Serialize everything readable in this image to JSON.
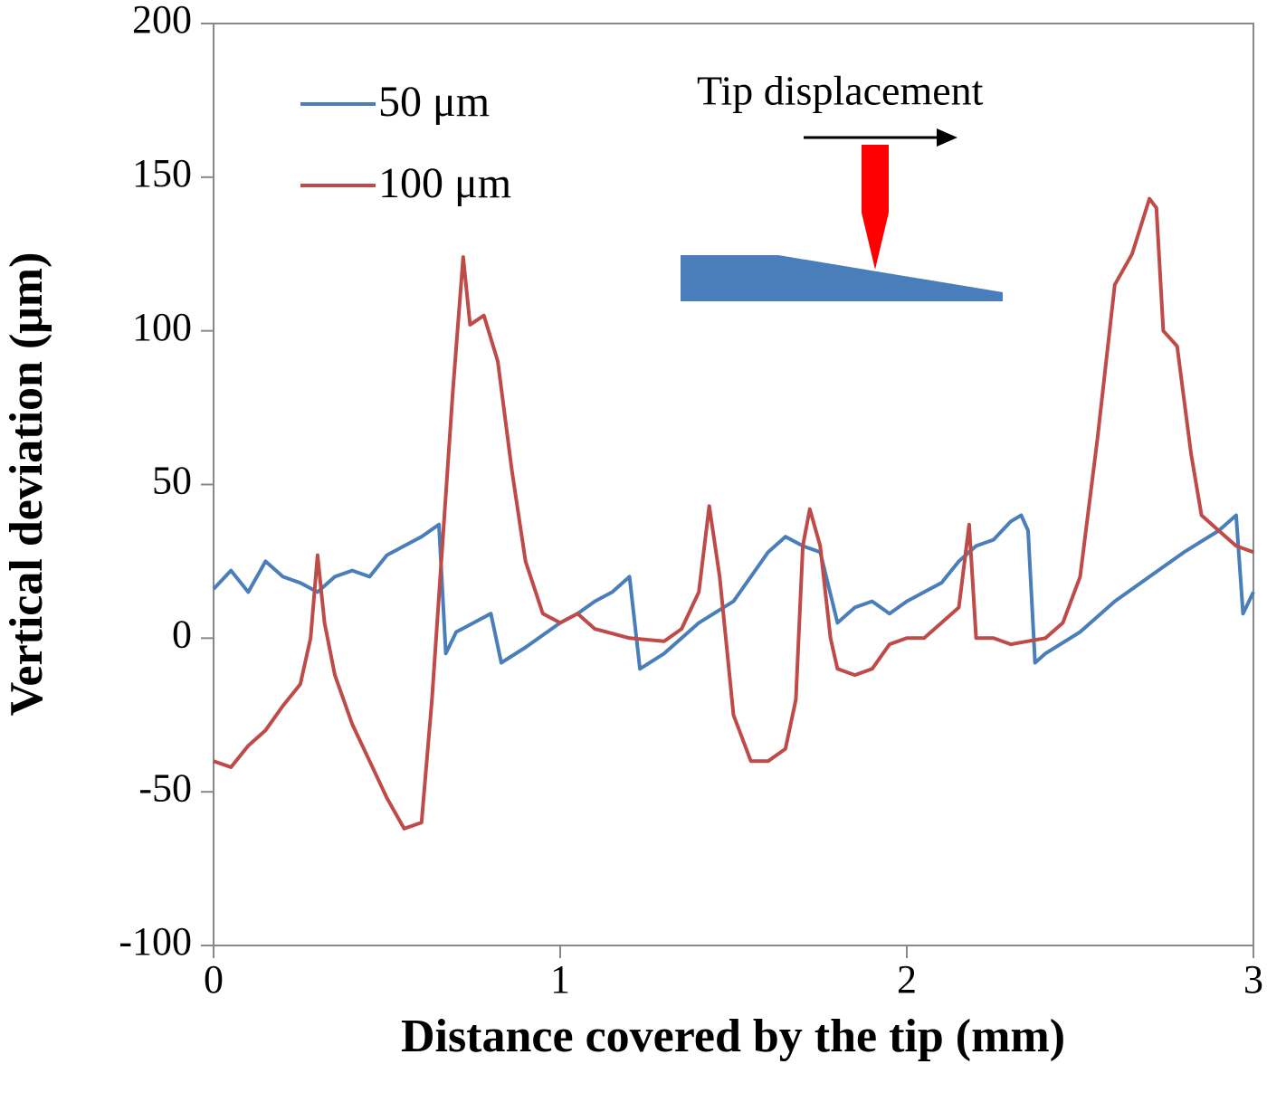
{
  "chart_data": {
    "type": "line",
    "xlabel": "Distance covered by the tip (mm)",
    "ylabel": "Vertical deviation (μm)",
    "annotation": "Tip displacement",
    "xlim": [
      0,
      3
    ],
    "xticks": [
      0,
      1,
      2,
      3
    ],
    "ylim": [
      -100,
      200
    ],
    "yticks": [
      -100,
      -50,
      0,
      50,
      100,
      150,
      200
    ],
    "grid": false,
    "legend": "upper left",
    "series": [
      {
        "name": "50 μm",
        "color": "#4a7ebb",
        "x": [
          0,
          0.05,
          0.1,
          0.15,
          0.2,
          0.25,
          0.3,
          0.35,
          0.4,
          0.45,
          0.5,
          0.55,
          0.6,
          0.65,
          0.67,
          0.7,
          0.75,
          0.8,
          0.83,
          0.9,
          1.0,
          1.05,
          1.1,
          1.15,
          1.2,
          1.23,
          1.3,
          1.4,
          1.5,
          1.55,
          1.6,
          1.65,
          1.7,
          1.75,
          1.8,
          1.85,
          1.9,
          1.95,
          2.0,
          2.05,
          2.1,
          2.15,
          2.2,
          2.25,
          2.3,
          2.33,
          2.35,
          2.37,
          2.4,
          2.5,
          2.6,
          2.7,
          2.8,
          2.9,
          2.95,
          2.97,
          3.0
        ],
        "values": [
          16,
          22,
          15,
          25,
          20,
          18,
          15,
          20,
          22,
          20,
          27,
          30,
          33,
          37,
          -5,
          2,
          5,
          8,
          -8,
          -3,
          5,
          8,
          12,
          15,
          20,
          -10,
          -5,
          5,
          12,
          20,
          28,
          33,
          30,
          28,
          5,
          10,
          12,
          8,
          12,
          15,
          18,
          25,
          30,
          32,
          38,
          40,
          35,
          -8,
          -5,
          2,
          12,
          20,
          28,
          35,
          40,
          8,
          15
        ]
      },
      {
        "name": "100 μm",
        "color": "#be4b48",
        "x": [
          0,
          0.05,
          0.1,
          0.15,
          0.2,
          0.25,
          0.28,
          0.3,
          0.32,
          0.35,
          0.4,
          0.45,
          0.5,
          0.55,
          0.6,
          0.63,
          0.66,
          0.69,
          0.72,
          0.74,
          0.78,
          0.82,
          0.86,
          0.9,
          0.95,
          1.0,
          1.05,
          1.1,
          1.2,
          1.3,
          1.35,
          1.4,
          1.43,
          1.46,
          1.5,
          1.55,
          1.6,
          1.65,
          1.68,
          1.7,
          1.72,
          1.75,
          1.78,
          1.8,
          1.85,
          1.9,
          1.95,
          2.0,
          2.05,
          2.1,
          2.15,
          2.18,
          2.2,
          2.25,
          2.3,
          2.35,
          2.4,
          2.45,
          2.5,
          2.55,
          2.6,
          2.65,
          2.7,
          2.72,
          2.74,
          2.78,
          2.82,
          2.85,
          2.9,
          2.95,
          3.0
        ],
        "values": [
          -40,
          -42,
          -35,
          -30,
          -22,
          -15,
          0,
          27,
          5,
          -12,
          -28,
          -40,
          -52,
          -62,
          -60,
          -20,
          30,
          80,
          124,
          102,
          105,
          90,
          55,
          25,
          8,
          5,
          8,
          3,
          0,
          -1,
          3,
          15,
          43,
          20,
          -25,
          -40,
          -40,
          -36,
          -20,
          30,
          42,
          30,
          0,
          -10,
          -12,
          -10,
          -2,
          0,
          0,
          5,
          10,
          37,
          0,
          0,
          -2,
          -1,
          0,
          5,
          20,
          65,
          115,
          125,
          143,
          140,
          100,
          95,
          60,
          40,
          35,
          30,
          28
        ]
      }
    ]
  }
}
